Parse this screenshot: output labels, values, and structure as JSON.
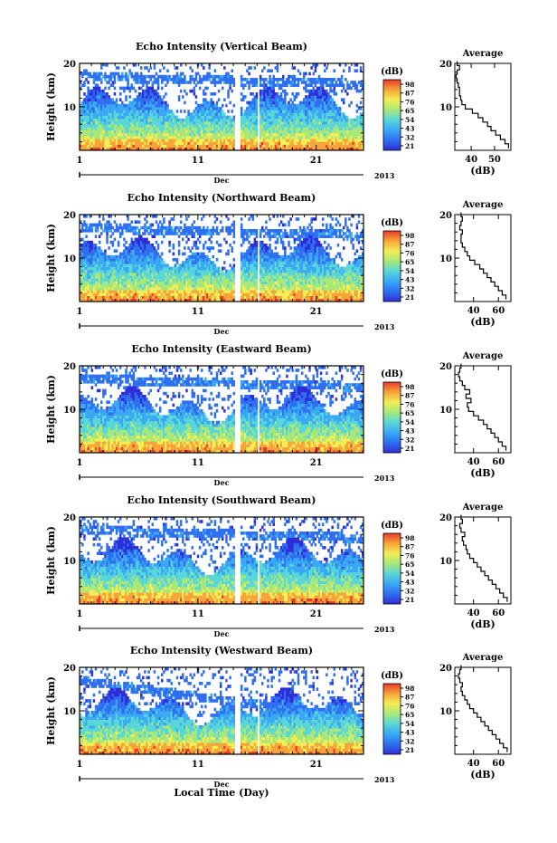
{
  "figure": {
    "xlabel": "Local Time (Day)",
    "colorbar_unit": "(dB)",
    "colorbar_ticks": [
      "98",
      "87",
      "76",
      "65",
      "54",
      "43",
      "32",
      "21"
    ],
    "colors": [
      "#2e2ed8",
      "#2f6ff0",
      "#3aa8f4",
      "#58d6d8",
      "#a8e87a",
      "#f2ee55",
      "#f7a53a",
      "#e83a2a"
    ]
  },
  "chart_data": [
    {
      "type": "heatmap",
      "title": "Echo Intensity (Vertical Beam)",
      "ylabel": "Height (km)",
      "yticks": [
        "20",
        "10"
      ],
      "ylim": [
        0,
        20
      ],
      "xticks": [
        "1",
        "11",
        "21"
      ],
      "x_axis_month": "Dec",
      "x_axis_year": "2013",
      "xlim": [
        1,
        25
      ],
      "data_gaps_day": [
        [
          14.2,
          14.6
        ],
        [
          16.0,
          16.2
        ]
      ],
      "colorbar_range_db": [
        21,
        98
      ],
      "avg_title": "Average",
      "avg_xlabel": "(dB)",
      "avg_xticks": [
        "40",
        "50"
      ],
      "avg_xlim": [
        33,
        57
      ],
      "avg_yticks": [
        "20",
        "10"
      ],
      "avg_profile": {
        "height_km": [
          1,
          2,
          3,
          4,
          5,
          6,
          7,
          8,
          9,
          10,
          11,
          12,
          13,
          14,
          15,
          16,
          17,
          18,
          19,
          20
        ],
        "db": [
          56,
          54.5,
          52.5,
          50.5,
          48.5,
          47,
          45,
          43,
          40.5,
          37.5,
          36,
          35.5,
          35,
          35,
          34.5,
          34,
          33.5,
          34,
          35,
          34
        ]
      }
    },
    {
      "type": "heatmap",
      "title": "Echo Intensity (Northward Beam)",
      "ylabel": "Height (km)",
      "yticks": [
        "20",
        "10"
      ],
      "ylim": [
        0,
        20
      ],
      "xticks": [
        "1",
        "11",
        "21"
      ],
      "x_axis_month": "Dec",
      "x_axis_year": "2013",
      "xlim": [
        1,
        25
      ],
      "data_gaps_day": [
        [
          14.2,
          14.6
        ],
        [
          16.0,
          16.2
        ]
      ],
      "colorbar_range_db": [
        21,
        98
      ],
      "avg_title": "Average",
      "avg_xlabel": "(dB)",
      "avg_xticks": [
        "40",
        "60"
      ],
      "avg_xlim": [
        25,
        70
      ],
      "avg_yticks": [
        "20",
        "10"
      ],
      "avg_profile": {
        "height_km": [
          1,
          2,
          3,
          4,
          5,
          6,
          7,
          8,
          9,
          10,
          11,
          12,
          13,
          14,
          15,
          16,
          17,
          18,
          19,
          20
        ],
        "db": [
          66,
          63,
          60,
          57,
          54,
          51,
          48,
          45,
          41,
          37,
          35,
          33,
          31,
          30,
          30,
          31,
          29,
          30,
          31,
          30
        ]
      }
    },
    {
      "type": "heatmap",
      "title": "Echo Intensity (Eastward Beam)",
      "ylabel": "Height (km)",
      "yticks": [
        "20",
        "10"
      ],
      "ylim": [
        0,
        20
      ],
      "xticks": [
        "1",
        "11",
        "21"
      ],
      "x_axis_month": "Dec",
      "x_axis_year": "2013",
      "xlim": [
        1,
        25
      ],
      "data_gaps_day": [
        [
          14.2,
          14.6
        ],
        [
          16.0,
          16.2
        ]
      ],
      "colorbar_range_db": [
        21,
        98
      ],
      "avg_title": "Average",
      "avg_xlabel": "(dB)",
      "avg_xticks": [
        "40",
        "60"
      ],
      "avg_xlim": [
        25,
        70
      ],
      "avg_yticks": [
        "20",
        "10"
      ],
      "avg_profile": {
        "height_km": [
          1,
          2,
          3,
          4,
          5,
          6,
          7,
          8,
          9,
          10,
          11,
          12,
          13,
          14,
          15,
          16,
          17,
          18,
          19,
          20
        ],
        "db": [
          66,
          63,
          60,
          57,
          54,
          51,
          48,
          44,
          40,
          36,
          35,
          38,
          34,
          37,
          33,
          31,
          29,
          28,
          29,
          30
        ]
      }
    },
    {
      "type": "heatmap",
      "title": "Echo Intensity (Southward Beam)",
      "ylabel": "Height (km)",
      "yticks": [
        "20",
        "10"
      ],
      "ylim": [
        0,
        20
      ],
      "xticks": [
        "1",
        "11",
        "21"
      ],
      "x_axis_month": "Dec",
      "x_axis_year": "2013",
      "xlim": [
        1,
        25
      ],
      "data_gaps_day": [
        [
          14.2,
          14.6
        ],
        [
          16.0,
          16.2
        ]
      ],
      "colorbar_range_db": [
        21,
        98
      ],
      "avg_title": "Average",
      "avg_xlabel": "(dB)",
      "avg_xticks": [
        "40",
        "60"
      ],
      "avg_xlim": [
        25,
        70
      ],
      "avg_yticks": [
        "20",
        "10"
      ],
      "avg_profile": {
        "height_km": [
          1,
          2,
          3,
          4,
          5,
          6,
          7,
          8,
          9,
          10,
          11,
          12,
          13,
          14,
          15,
          16,
          17,
          18,
          19,
          20
        ],
        "db": [
          67,
          64,
          61,
          58,
          55,
          52,
          49,
          46,
          43,
          40,
          37,
          35,
          34,
          32,
          31,
          33,
          30,
          29,
          31,
          30
        ]
      }
    },
    {
      "type": "heatmap",
      "title": "Echo Intensity (Westward Beam)",
      "ylabel": "Height (km)",
      "yticks": [
        "20",
        "10"
      ],
      "ylim": [
        0,
        20
      ],
      "xticks": [
        "1",
        "11",
        "21"
      ],
      "x_axis_month": "Dec",
      "x_axis_year": "2013",
      "xlim": [
        1,
        25
      ],
      "data_gaps_day": [
        [
          14.2,
          14.6
        ],
        [
          16.0,
          16.2
        ]
      ],
      "colorbar_range_db": [
        21,
        98
      ],
      "avg_title": "Average",
      "avg_xlabel": "(dB)",
      "avg_xticks": [
        "40",
        "60"
      ],
      "avg_xlim": [
        25,
        70
      ],
      "avg_yticks": [
        "20",
        "10"
      ],
      "avg_profile": {
        "height_km": [
          1,
          2,
          3,
          4,
          5,
          6,
          7,
          8,
          9,
          10,
          11,
          12,
          13,
          14,
          15,
          16,
          17,
          18,
          19,
          20
        ],
        "db": [
          67,
          64,
          61,
          58,
          55,
          52,
          49,
          46,
          43,
          40,
          37,
          35,
          33,
          31,
          30,
          31,
          29,
          28,
          29,
          30
        ]
      }
    }
  ]
}
